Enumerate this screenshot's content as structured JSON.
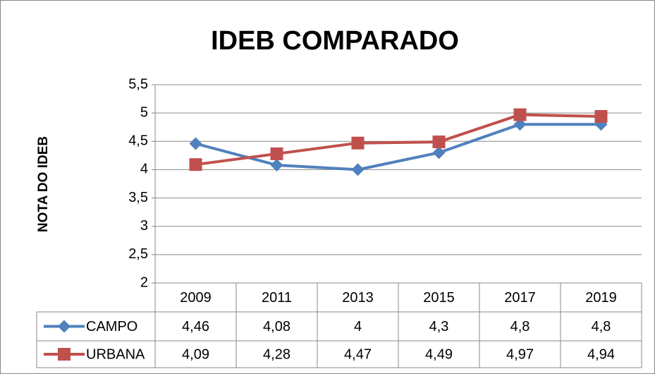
{
  "chart_data": {
    "type": "line",
    "title": "IDEB COMPARADO",
    "y_label": "NOTA DO IDEB",
    "categories": [
      "2009",
      "2011",
      "2013",
      "2015",
      "2017",
      "2019"
    ],
    "series": [
      {
        "name": "CAMPO",
        "color": "#4f81bd",
        "marker": "diamond",
        "values": [
          4.46,
          4.08,
          4,
          4.3,
          4.8,
          4.8
        ],
        "value_labels": [
          "4,46",
          "4,08",
          "4",
          "4,3",
          "4,8",
          "4,8"
        ]
      },
      {
        "name": "URBANA",
        "color": "#c0504d",
        "marker": "square",
        "values": [
          4.09,
          4.28,
          4.47,
          4.49,
          4.97,
          4.94
        ],
        "value_labels": [
          "4,09",
          "4,28",
          "4,47",
          "4,49",
          "4,97",
          "4,94"
        ]
      }
    ],
    "ylim": [
      2,
      5.5
    ],
    "yticks": [
      2,
      {
        "value": 2.5,
        "label": "2,5"
      },
      3,
      {
        "value": 3.5,
        "label": "3,5"
      },
      4,
      {
        "value": 4.5,
        "label": "4,5"
      },
      5,
      {
        "value": 5.5,
        "label": "5,5"
      }
    ],
    "grid": true,
    "data_table": true
  }
}
